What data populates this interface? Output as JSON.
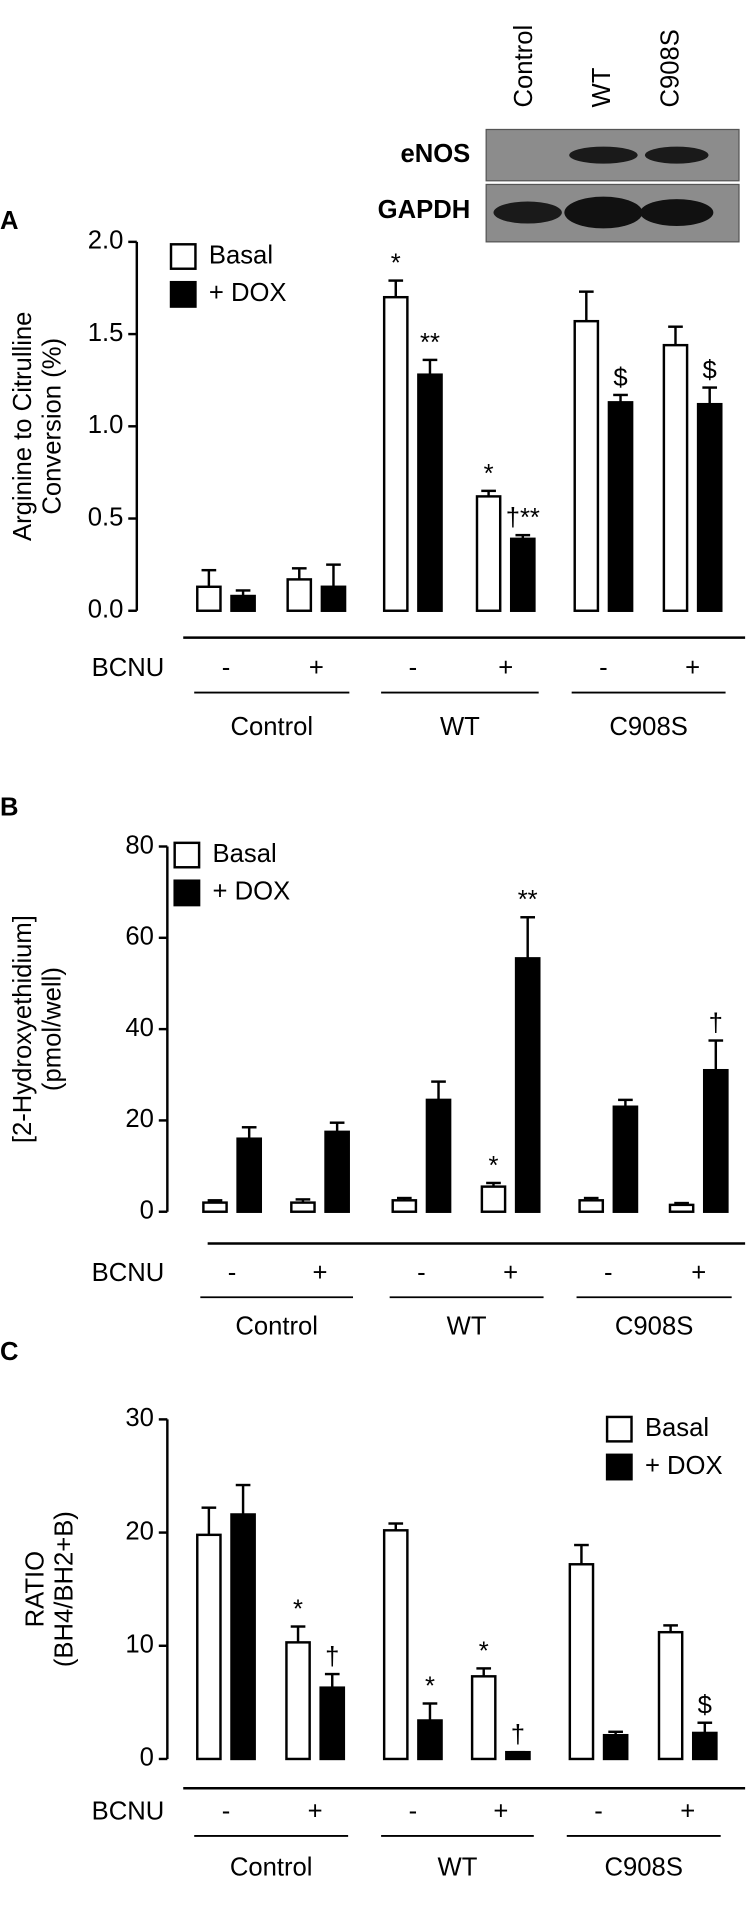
{
  "blot": {
    "lanes": [
      "Control",
      "WT",
      "C908S"
    ],
    "rows": [
      "eNOS",
      "GAPDH"
    ]
  },
  "chart_data": [
    {
      "type": "bar",
      "panel": "A",
      "ylabel": [
        "Arginine to Citrulline",
        "Conversion (%)"
      ],
      "ylim": [
        0,
        2.0
      ],
      "yticks": [
        {
          "value": 0,
          "label": "0.0"
        },
        0.5,
        {
          "value": 1,
          "label": "1.0"
        },
        1.5,
        {
          "value": 2,
          "label": "2.0"
        }
      ],
      "xlabel": "BCNU",
      "categories": [
        "-",
        "+",
        "-",
        "+",
        "-",
        "+"
      ],
      "groups": [
        "Control",
        "WT",
        "C908S"
      ],
      "legend": "upper left",
      "series": [
        {
          "name": "Basal",
          "color": "#ffffff",
          "values": [
            0.13,
            0.17,
            1.7,
            0.62,
            1.57,
            1.44
          ],
          "errors": [
            0.09,
            0.06,
            0.09,
            0.03,
            0.16,
            0.1
          ],
          "annotations": [
            null,
            null,
            "*",
            "*",
            null,
            null
          ]
        },
        {
          "name": "+ DOX",
          "color": "#000000",
          "values": [
            0.08,
            0.13,
            1.28,
            0.39,
            1.13,
            1.12
          ],
          "errors": [
            0.03,
            0.12,
            0.08,
            0.02,
            0.04,
            0.09
          ],
          "annotations": [
            null,
            null,
            "**",
            "†**",
            "$",
            "$"
          ]
        }
      ]
    },
    {
      "type": "bar",
      "panel": "B",
      "ylabel": [
        "[2-Hydroxyethidium]",
        "(pmol/well)"
      ],
      "ylim": [
        0,
        80
      ],
      "yticks": [
        0,
        20,
        40,
        60,
        80
      ],
      "xlabel": "BCNU",
      "categories": [
        "-",
        "+",
        "-",
        "+",
        "-",
        "+"
      ],
      "groups": [
        "Control",
        "WT",
        "C908S"
      ],
      "legend": "upper left",
      "series": [
        {
          "name": "Basal",
          "color": "#ffffff",
          "values": [
            2,
            2,
            2.5,
            5.5,
            2.5,
            1.5
          ],
          "errors": [
            0.5,
            0.7,
            0.5,
            0.8,
            0.5,
            0.4
          ],
          "annotations": [
            null,
            null,
            null,
            "*",
            null,
            null
          ]
        },
        {
          "name": "+ DOX",
          "color": "#000000",
          "values": [
            16,
            17.5,
            24.5,
            55.5,
            23,
            31
          ],
          "errors": [
            2.5,
            2,
            4,
            9,
            1.5,
            6.5
          ],
          "annotations": [
            null,
            null,
            null,
            "**",
            null,
            "†"
          ]
        }
      ]
    },
    {
      "type": "bar",
      "panel": "C",
      "ylabel": [
        "RATIO",
        "(BH4/BH2+B)"
      ],
      "ylim": [
        0,
        30
      ],
      "yticks": [
        0,
        10,
        20,
        30
      ],
      "xlabel": "BCNU",
      "categories": [
        "-",
        "+",
        "-",
        "+",
        "-",
        "+"
      ],
      "groups": [
        "Control",
        "WT",
        "C908S"
      ],
      "legend": "upper right",
      "series": [
        {
          "name": "Basal",
          "color": "#ffffff",
          "values": [
            19.8,
            10.3,
            20.2,
            7.3,
            17.2,
            11.2
          ],
          "errors": [
            2.4,
            1.4,
            0.6,
            0.7,
            1.7,
            0.6
          ],
          "annotations": [
            null,
            "*",
            null,
            "*",
            null,
            null
          ]
        },
        {
          "name": "+ DOX",
          "color": "#000000",
          "values": [
            21.6,
            6.3,
            3.4,
            0.6,
            2.1,
            2.3
          ],
          "errors": [
            2.6,
            1.2,
            1.5,
            0,
            0.3,
            0.9
          ],
          "annotations": [
            null,
            "†",
            "*",
            "†",
            null,
            "$"
          ]
        }
      ]
    }
  ]
}
